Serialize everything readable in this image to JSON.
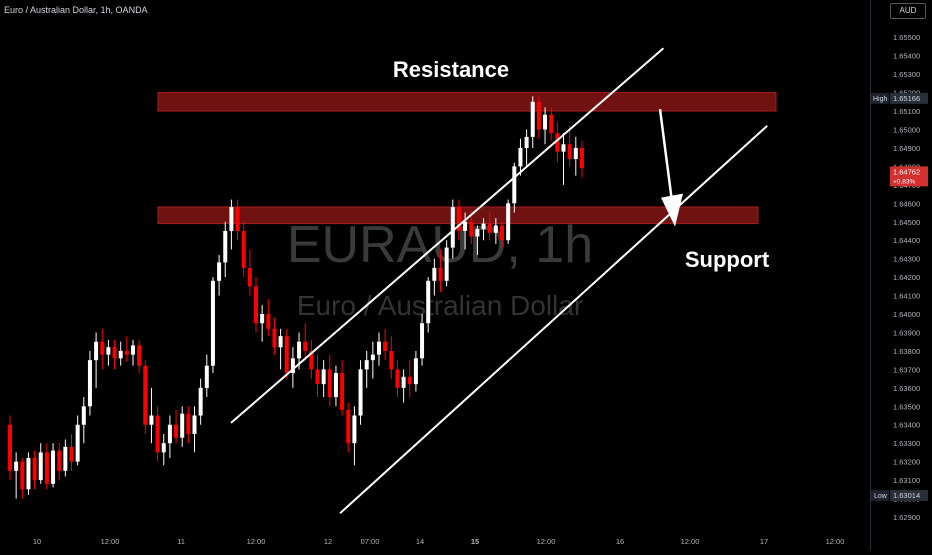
{
  "header": {
    "title": "Euro / Australian Dollar, 1h, OANDA",
    "currency": "AUD"
  },
  "watermark": {
    "symbol": "EURAUD, 1h",
    "name": "Euro / Australian Dollar"
  },
  "annotations": {
    "resistance": "Resistance",
    "support": "Support"
  },
  "price_labels": {
    "high_tag": "High",
    "high_value": "1.65166",
    "current_value": "1.64762",
    "current_change": "+0.83%",
    "low_tag": "Low",
    "low_value": "1.63014"
  },
  "colors": {
    "background": "#000000",
    "up_candle": "#ffffff",
    "down_candle": "#ff0000",
    "zone": "#7a1414",
    "channel": "#ffffff",
    "current_tag": "#d32f2f"
  },
  "chart_data": {
    "type": "candlestick",
    "ylim": [
      1.629,
      1.6555
    ],
    "yticks": [
      "1.65500",
      "1.65400",
      "1.65300",
      "1.65200",
      "1.65100",
      "1.65000",
      "1.64900",
      "1.64800",
      "1.64700",
      "1.64600",
      "1.64500",
      "1.64400",
      "1.64300",
      "1.64200",
      "1.64100",
      "1.64000",
      "1.63900",
      "1.63800",
      "1.63700",
      "1.63600",
      "1.63500",
      "1.63400",
      "1.63300",
      "1.63200",
      "1.63100",
      "1.63000",
      "1.62900"
    ],
    "xticks": [
      "10",
      "12:00",
      "11",
      "12:00",
      "12",
      "07:00",
      "14",
      "15",
      "12:00",
      "16",
      "12:00",
      "17",
      "12:00"
    ],
    "zones": [
      {
        "name": "Resistance",
        "low": 1.651,
        "high": 1.652
      },
      {
        "name": "Support",
        "low": 1.6449,
        "high": 1.6458
      }
    ],
    "channel": {
      "upper": [
        [
          0,
          1.6341
        ],
        [
          116,
          1.6544
        ]
      ],
      "lower": [
        [
          20,
          1.6292
        ],
        [
          135,
          1.6502
        ]
      ]
    },
    "arrow": {
      "from": [
        117,
        1.6511
      ],
      "to": [
        121,
        1.6449
      ]
    },
    "candles": [
      [
        1.634,
        1.6345,
        1.631,
        1.6315
      ],
      [
        1.6315,
        1.6325,
        1.63,
        1.632
      ],
      [
        1.632,
        1.6322,
        1.63,
        1.6305
      ],
      [
        1.6305,
        1.6325,
        1.6302,
        1.6322
      ],
      [
        1.6322,
        1.6326,
        1.6305,
        1.631
      ],
      [
        1.631,
        1.633,
        1.6308,
        1.6325
      ],
      [
        1.6325,
        1.633,
        1.6305,
        1.6308
      ],
      [
        1.6308,
        1.633,
        1.6306,
        1.6326
      ],
      [
        1.6326,
        1.633,
        1.631,
        1.6315
      ],
      [
        1.6315,
        1.6332,
        1.6312,
        1.6328
      ],
      [
        1.6328,
        1.6335,
        1.6315,
        1.632
      ],
      [
        1.632,
        1.6345,
        1.6318,
        1.634
      ],
      [
        1.634,
        1.6355,
        1.633,
        1.635
      ],
      [
        1.635,
        1.638,
        1.6345,
        1.6375
      ],
      [
        1.6375,
        1.639,
        1.636,
        1.6385
      ],
      [
        1.6385,
        1.6392,
        1.637,
        1.6378
      ],
      [
        1.6378,
        1.6386,
        1.6372,
        1.6382
      ],
      [
        1.6382,
        1.6386,
        1.637,
        1.6376
      ],
      [
        1.6376,
        1.6385,
        1.6372,
        1.638
      ],
      [
        1.638,
        1.6388,
        1.6374,
        1.6378
      ],
      [
        1.6378,
        1.6386,
        1.6372,
        1.6383
      ],
      [
        1.6383,
        1.6386,
        1.6368,
        1.6372
      ],
      [
        1.6372,
        1.6375,
        1.6335,
        1.634
      ],
      [
        1.634,
        1.636,
        1.633,
        1.6345
      ],
      [
        1.6345,
        1.635,
        1.632,
        1.6325
      ],
      [
        1.6325,
        1.6335,
        1.6318,
        1.633
      ],
      [
        1.633,
        1.6345,
        1.6322,
        1.634
      ],
      [
        1.634,
        1.6348,
        1.633,
        1.6333
      ],
      [
        1.6333,
        1.635,
        1.6328,
        1.6346
      ],
      [
        1.6346,
        1.635,
        1.633,
        1.6335
      ],
      [
        1.6335,
        1.635,
        1.6325,
        1.6345
      ],
      [
        1.6345,
        1.6365,
        1.634,
        1.636
      ],
      [
        1.636,
        1.6378,
        1.6355,
        1.6372
      ],
      [
        1.6372,
        1.642,
        1.6368,
        1.6418
      ],
      [
        1.6418,
        1.6432,
        1.641,
        1.6428
      ],
      [
        1.6428,
        1.645,
        1.642,
        1.6445
      ],
      [
        1.6445,
        1.6462,
        1.6435,
        1.6458
      ],
      [
        1.6458,
        1.6462,
        1.644,
        1.6445
      ],
      [
        1.6445,
        1.645,
        1.642,
        1.6425
      ],
      [
        1.6425,
        1.6435,
        1.641,
        1.6415
      ],
      [
        1.6415,
        1.642,
        1.639,
        1.6395
      ],
      [
        1.6395,
        1.6405,
        1.6385,
        1.64
      ],
      [
        1.64,
        1.6408,
        1.6388,
        1.6392
      ],
      [
        1.6392,
        1.6398,
        1.6378,
        1.6382
      ],
      [
        1.6382,
        1.6392,
        1.637,
        1.6388
      ],
      [
        1.6388,
        1.6392,
        1.6365,
        1.6368
      ],
      [
        1.6368,
        1.6382,
        1.636,
        1.6376
      ],
      [
        1.6376,
        1.639,
        1.637,
        1.6385
      ],
      [
        1.6385,
        1.6395,
        1.6375,
        1.638
      ],
      [
        1.638,
        1.6386,
        1.6365,
        1.637
      ],
      [
        1.637,
        1.6378,
        1.6355,
        1.6362
      ],
      [
        1.6362,
        1.6375,
        1.6355,
        1.637
      ],
      [
        1.637,
        1.6378,
        1.635,
        1.6355
      ],
      [
        1.6355,
        1.6372,
        1.635,
        1.6368
      ],
      [
        1.6368,
        1.6375,
        1.6345,
        1.6348
      ],
      [
        1.6348,
        1.6352,
        1.6325,
        1.633
      ],
      [
        1.633,
        1.635,
        1.6318,
        1.6345
      ],
      [
        1.6345,
        1.6375,
        1.634,
        1.637
      ],
      [
        1.637,
        1.638,
        1.636,
        1.6375
      ],
      [
        1.6375,
        1.6385,
        1.6365,
        1.6378
      ],
      [
        1.6378,
        1.639,
        1.6372,
        1.6385
      ],
      [
        1.6385,
        1.6392,
        1.6375,
        1.638
      ],
      [
        1.638,
        1.6388,
        1.6365,
        1.637
      ],
      [
        1.637,
        1.6375,
        1.6355,
        1.636
      ],
      [
        1.636,
        1.637,
        1.6352,
        1.6366
      ],
      [
        1.6366,
        1.6375,
        1.6355,
        1.6362
      ],
      [
        1.6362,
        1.638,
        1.6358,
        1.6376
      ],
      [
        1.6376,
        1.64,
        1.6372,
        1.6395
      ],
      [
        1.6395,
        1.642,
        1.639,
        1.6418
      ],
      [
        1.6418,
        1.643,
        1.641,
        1.6425
      ],
      [
        1.6425,
        1.6435,
        1.6412,
        1.6418
      ],
      [
        1.6418,
        1.644,
        1.6415,
        1.6436
      ],
      [
        1.6436,
        1.6462,
        1.643,
        1.6458
      ],
      [
        1.6458,
        1.6462,
        1.644,
        1.6445
      ],
      [
        1.6445,
        1.6455,
        1.6435,
        1.645
      ],
      [
        1.645,
        1.6456,
        1.6438,
        1.6442
      ],
      [
        1.6442,
        1.6448,
        1.6432,
        1.6446
      ],
      [
        1.6446,
        1.6452,
        1.644,
        1.6449
      ],
      [
        1.6449,
        1.6455,
        1.644,
        1.6444
      ],
      [
        1.6444,
        1.6452,
        1.6438,
        1.6448
      ],
      [
        1.6448,
        1.645,
        1.6436,
        1.644
      ],
      [
        1.644,
        1.6462,
        1.6438,
        1.646
      ],
      [
        1.646,
        1.6482,
        1.6455,
        1.648
      ],
      [
        1.648,
        1.6495,
        1.6475,
        1.649
      ],
      [
        1.649,
        1.65,
        1.648,
        1.6496
      ],
      [
        1.6496,
        1.6518,
        1.649,
        1.6515
      ],
      [
        1.6515,
        1.6518,
        1.6495,
        1.65
      ],
      [
        1.65,
        1.6512,
        1.6492,
        1.6508
      ],
      [
        1.6508,
        1.6512,
        1.6494,
        1.6498
      ],
      [
        1.6498,
        1.6504,
        1.6482,
        1.6488
      ],
      [
        1.6488,
        1.6498,
        1.647,
        1.6492
      ],
      [
        1.6492,
        1.6502,
        1.648,
        1.6484
      ],
      [
        1.6484,
        1.6496,
        1.6475,
        1.649
      ],
      [
        1.649,
        1.6494,
        1.6474,
        1.6479
      ]
    ]
  }
}
